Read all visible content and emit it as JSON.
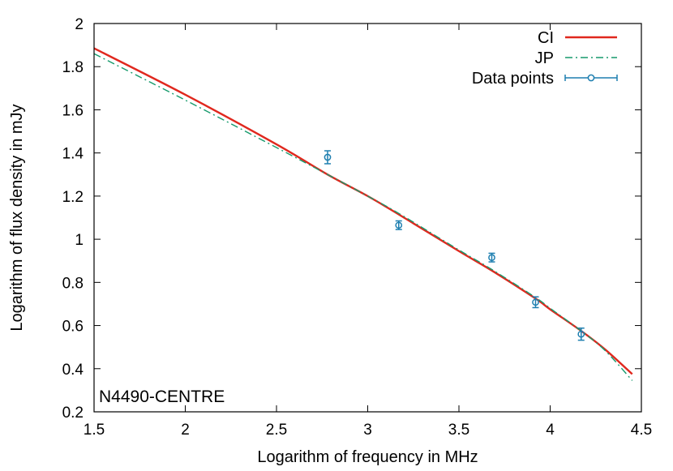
{
  "chart_data": {
    "type": "line",
    "title": "",
    "xlabel": "Logarithm of frequency in MHz",
    "ylabel": "Logarithm of flux density in mJy",
    "annotation": "N4490-CENTRE",
    "xlim": [
      1.5,
      4.5
    ],
    "ylim": [
      0.2,
      2.0
    ],
    "xticks": [
      1.5,
      2,
      2.5,
      3,
      3.5,
      4,
      4.5
    ],
    "yticks": [
      0.2,
      0.4,
      0.6,
      0.8,
      1,
      1.2,
      1.4,
      1.6,
      1.8,
      2
    ],
    "grid": false,
    "legend_position": "top-right",
    "series": [
      {
        "name": "CI",
        "style": "solid",
        "color": "#e0281e",
        "x": [
          1.5,
          2.0,
          2.5,
          2.78,
          3.0,
          3.17,
          3.5,
          3.68,
          3.92,
          4.0,
          4.17,
          4.3,
          4.45
        ],
        "y": [
          1.885,
          1.67,
          1.44,
          1.3,
          1.2,
          1.115,
          0.945,
          0.855,
          0.725,
          0.675,
          0.575,
          0.49,
          0.375
        ]
      },
      {
        "name": "JP",
        "style": "dash-dot",
        "color": "#169a6c",
        "x": [
          1.5,
          2.0,
          2.5,
          2.78,
          3.0,
          3.17,
          3.5,
          3.68,
          3.92,
          4.0,
          4.17,
          4.3,
          4.45
        ],
        "y": [
          1.86,
          1.645,
          1.425,
          1.3,
          1.2,
          1.12,
          0.95,
          0.86,
          0.73,
          0.68,
          0.575,
          0.485,
          0.345
        ]
      },
      {
        "name": "Data points",
        "style": "points-errorbars",
        "color": "#1e7fb0",
        "x": [
          2.78,
          3.17,
          3.68,
          3.92,
          4.17
        ],
        "y": [
          1.38,
          1.065,
          0.915,
          0.708,
          0.56
        ],
        "yerr": [
          0.03,
          0.02,
          0.02,
          0.025,
          0.028
        ]
      }
    ]
  }
}
